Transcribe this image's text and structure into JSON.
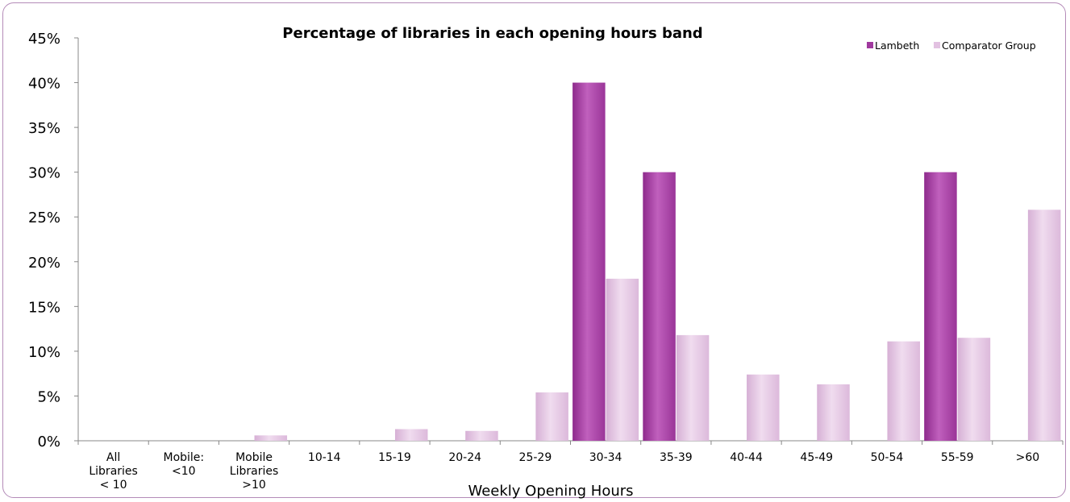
{
  "chart_data": {
    "type": "bar",
    "title": "Percentage of libraries in each opening hours band",
    "xlabel": "Weekly Opening Hours",
    "ylabel": "",
    "ylim": [
      0,
      45
    ],
    "yticks": [
      "0%",
      "5%",
      "10%",
      "15%",
      "20%",
      "25%",
      "30%",
      "35%",
      "40%",
      "45%"
    ],
    "categories": [
      [
        "All",
        "Libraries",
        "< 10"
      ],
      [
        "Mobile:",
        "<10"
      ],
      [
        "Mobile",
        "Libraries",
        ">10"
      ],
      [
        "10-14"
      ],
      [
        "15-19"
      ],
      [
        "20-24"
      ],
      [
        "25-29"
      ],
      [
        "30-34"
      ],
      [
        "35-39"
      ],
      [
        "40-44"
      ],
      [
        "45-49"
      ],
      [
        "50-54"
      ],
      [
        "55-59"
      ],
      [
        ">60"
      ]
    ],
    "series": [
      {
        "name": "Lambeth",
        "color": "#a0399e",
        "values": [
          0,
          0,
          0,
          0,
          0,
          0,
          0,
          40,
          30,
          0,
          0,
          0,
          30,
          0
        ]
      },
      {
        "name": "Comparator Group",
        "color": "#e2c1e1",
        "values": [
          0,
          0,
          0.6,
          0,
          1.3,
          1.1,
          5.4,
          18.1,
          11.8,
          7.4,
          6.3,
          11.1,
          11.5,
          25.8
        ]
      }
    ],
    "legend_position": "top-right",
    "grid": false
  }
}
